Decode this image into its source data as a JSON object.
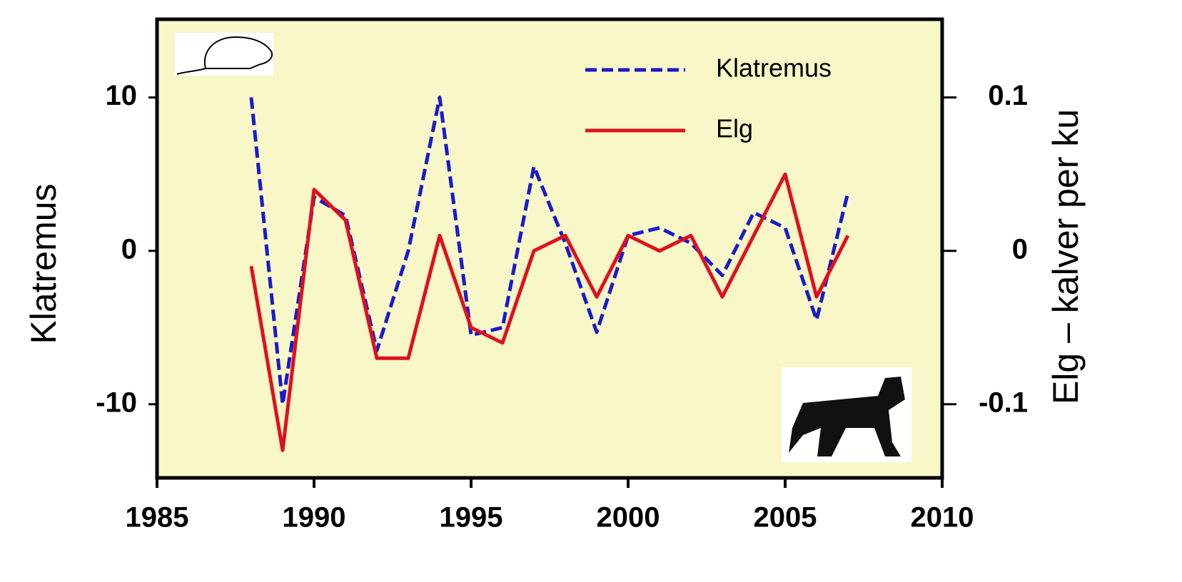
{
  "chart_data": {
    "type": "line",
    "x": [
      1988,
      1989,
      1990,
      1991,
      1992,
      1993,
      1994,
      1995,
      1996,
      1997,
      1998,
      1999,
      2000,
      2001,
      2002,
      2003,
      2004,
      2005,
      2006,
      2007
    ],
    "series": [
      {
        "name": "Klatremus",
        "color": "#1a1acc",
        "dash": true,
        "values": [
          10,
          -10,
          3.5,
          2.3,
          -6.5,
          0,
          10,
          -5.5,
          -5,
          5.5,
          0.5,
          -5.3,
          1,
          1.5,
          0.5,
          -1.6,
          2.5,
          1.5,
          -4.5,
          3.8
        ]
      },
      {
        "name": "Elg",
        "color": "#e0101c",
        "axis": "y2",
        "values": [
          -0.01,
          -0.13,
          0.04,
          0.02,
          -0.07,
          -0.07,
          0.01,
          -0.05,
          -0.06,
          0,
          0.01,
          -0.03,
          0.01,
          0,
          0.01,
          -0.03,
          0.01,
          0.05,
          -0.03,
          0.01
        ]
      }
    ],
    "y_label": "Klatremus",
    "y2_label": "Elg – kalver per ku",
    "xlim": [
      1985,
      2010
    ],
    "xticks": [
      1985,
      1990,
      1995,
      2000,
      2005,
      2010
    ],
    "ylim": [
      -14.8,
      15.1
    ],
    "yticks": [
      -10,
      0,
      10
    ],
    "y2lim": [
      -0.148,
      0.151
    ],
    "y2ticks": [
      -0.1,
      0,
      0.1
    ],
    "legend": "upper right",
    "background": "#f7f7c8"
  }
}
